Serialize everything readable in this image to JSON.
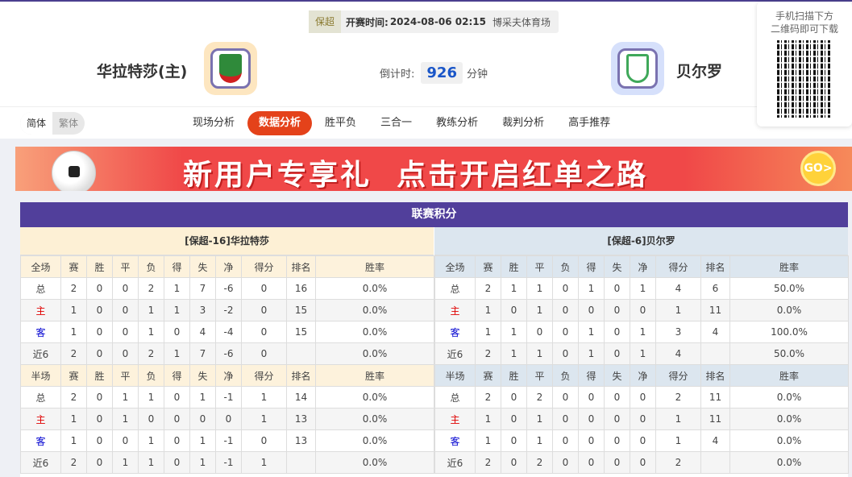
{
  "match": {
    "league": "保超",
    "kickoff_label": "开赛时间:",
    "kickoff": "2024-08-06 02:15",
    "venue": "博采夫体育场",
    "home": "华拉特莎(主)",
    "away": "贝尔罗",
    "countdown_label": "倒计时:",
    "countdown": "926",
    "countdown_unit": "分钟",
    "home_logo_color": "#2f8a3a",
    "away_logo_color": "#3fa85a"
  },
  "qr": {
    "line1": "手机扫描下方",
    "line2": "二维码即可下载"
  },
  "lang": {
    "simplified": "简体",
    "traditional": "繁体"
  },
  "tabs": [
    {
      "label": "现场分析"
    },
    {
      "label": "数据分析",
      "active": true
    },
    {
      "label": "胜平负"
    },
    {
      "label": "三合一"
    },
    {
      "label": "教练分析"
    },
    {
      "label": "裁判分析"
    },
    {
      "label": "高手推荐"
    }
  ],
  "banner": {
    "text": "新用户专享礼  点击开启红单之路",
    "button": "GO>"
  },
  "standings": {
    "title": "联赛积分",
    "columns_full": [
      "全场",
      "赛",
      "胜",
      "平",
      "负",
      "得",
      "失",
      "净",
      "得分",
      "排名",
      "胜率"
    ],
    "columns_half": [
      "半场",
      "赛",
      "胜",
      "平",
      "负",
      "得",
      "失",
      "净",
      "得分",
      "排名",
      "胜率"
    ],
    "home": {
      "header": "[保超-16]华拉特莎",
      "full": [
        [
          "总",
          "2",
          "0",
          "0",
          "2",
          "1",
          "7",
          "-6",
          "0",
          "16",
          "0.0%"
        ],
        [
          "主",
          "1",
          "0",
          "0",
          "1",
          "1",
          "3",
          "-2",
          "0",
          "15",
          "0.0%"
        ],
        [
          "客",
          "1",
          "0",
          "0",
          "1",
          "0",
          "4",
          "-4",
          "0",
          "15",
          "0.0%"
        ],
        [
          "近6",
          "2",
          "0",
          "0",
          "2",
          "1",
          "7",
          "-6",
          "0",
          "",
          "0.0%"
        ]
      ],
      "half": [
        [
          "总",
          "2",
          "0",
          "1",
          "1",
          "0",
          "1",
          "-1",
          "1",
          "14",
          "0.0%"
        ],
        [
          "主",
          "1",
          "0",
          "1",
          "0",
          "0",
          "0",
          "0",
          "1",
          "13",
          "0.0%"
        ],
        [
          "客",
          "1",
          "0",
          "0",
          "1",
          "0",
          "1",
          "-1",
          "0",
          "13",
          "0.0%"
        ],
        [
          "近6",
          "2",
          "0",
          "1",
          "1",
          "0",
          "1",
          "-1",
          "1",
          "",
          "0.0%"
        ]
      ]
    },
    "away": {
      "header": "[保超-6]贝尔罗",
      "full": [
        [
          "总",
          "2",
          "1",
          "1",
          "0",
          "1",
          "0",
          "1",
          "4",
          "6",
          "50.0%"
        ],
        [
          "主",
          "1",
          "0",
          "1",
          "0",
          "0",
          "0",
          "0",
          "1",
          "11",
          "0.0%"
        ],
        [
          "客",
          "1",
          "1",
          "0",
          "0",
          "1",
          "0",
          "1",
          "3",
          "4",
          "100.0%"
        ],
        [
          "近6",
          "2",
          "1",
          "1",
          "0",
          "1",
          "0",
          "1",
          "4",
          "",
          "50.0%"
        ]
      ],
      "half": [
        [
          "总",
          "2",
          "0",
          "2",
          "0",
          "0",
          "0",
          "0",
          "2",
          "11",
          "0.0%"
        ],
        [
          "主",
          "1",
          "0",
          "1",
          "0",
          "0",
          "0",
          "0",
          "1",
          "11",
          "0.0%"
        ],
        [
          "客",
          "1",
          "0",
          "1",
          "0",
          "0",
          "0",
          "0",
          "1",
          "4",
          "0.0%"
        ],
        [
          "近6",
          "2",
          "0",
          "2",
          "0",
          "0",
          "0",
          "0",
          "2",
          "",
          "0.0%"
        ]
      ]
    }
  }
}
